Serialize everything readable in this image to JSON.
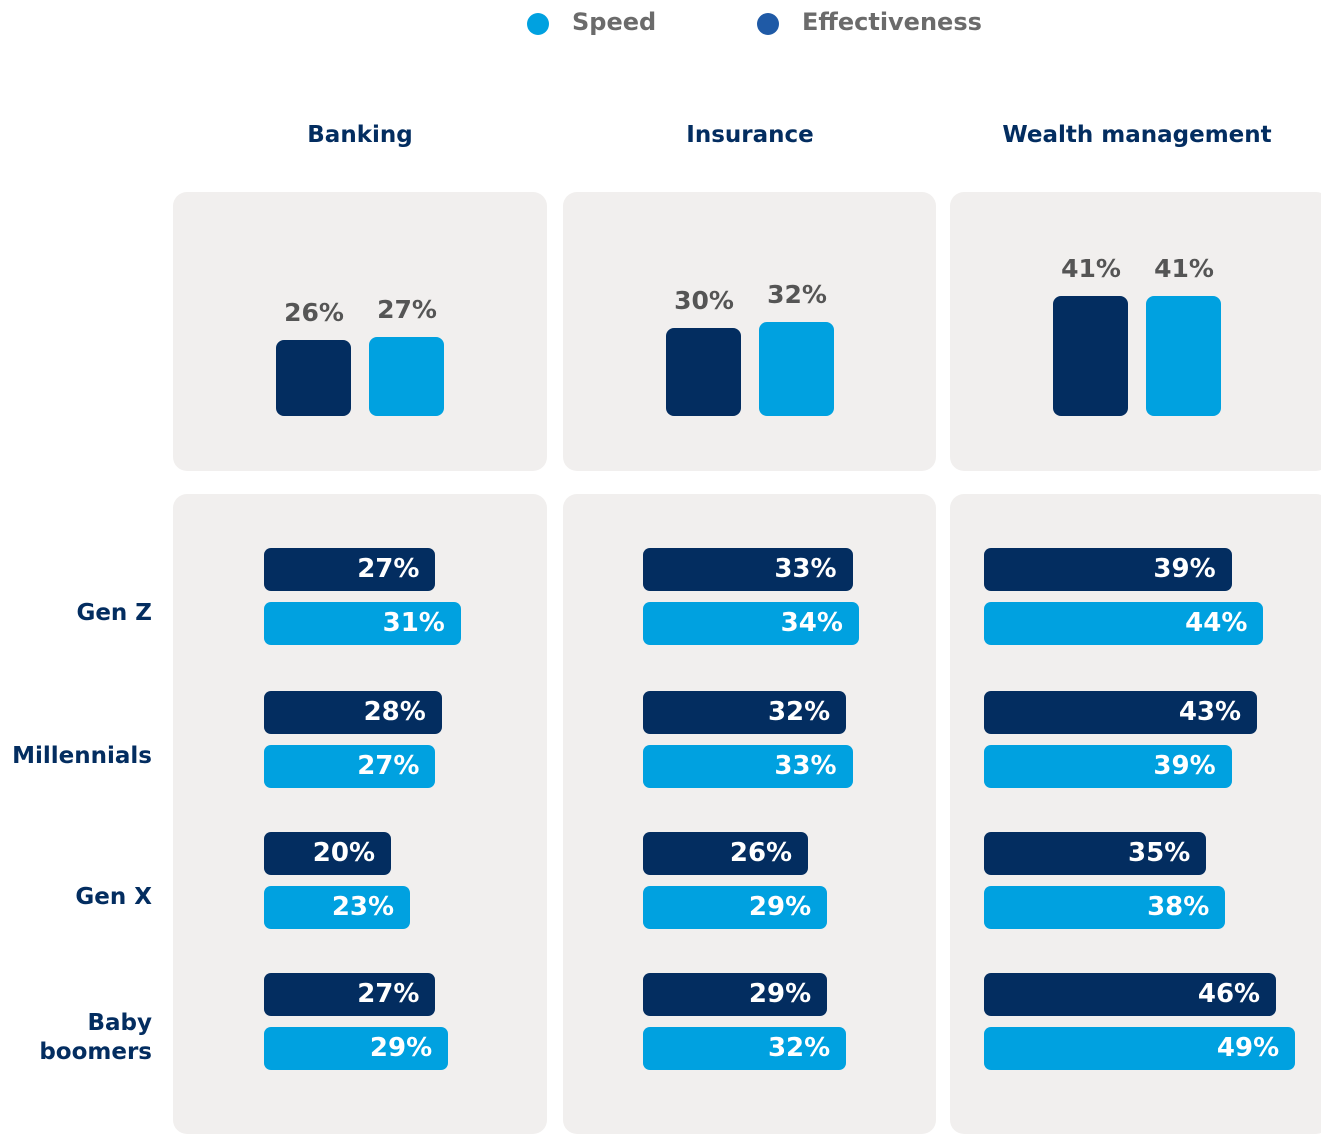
{
  "chart_data": {
    "type": "bar",
    "categories": [
      "Banking",
      "Insurance",
      "Wealth management"
    ],
    "groups": [
      "Gen Z",
      "Millennials",
      "Gen X",
      "Baby boomers"
    ],
    "series": [
      {
        "name": "Effectiveness",
        "color": "#1f5aa6",
        "bar_color": "#032d60",
        "values": [
          26,
          30,
          41
        ],
        "value_labels": [
          "26%",
          "30%",
          "41%"
        ],
        "group_values": [
          [
            27,
            28,
            20,
            27
          ],
          [
            33,
            32,
            26,
            29
          ],
          [
            39,
            43,
            35,
            46
          ]
        ],
        "group_value_labels": [
          [
            "27%",
            "28%",
            "20%",
            "27%"
          ],
          [
            "33%",
            "32%",
            "26%",
            "29%"
          ],
          [
            "39%",
            "43%",
            "35%",
            "46%"
          ]
        ]
      },
      {
        "name": "Speed",
        "color": "#00a1e0",
        "bar_color": "#00a1e0",
        "values": [
          27,
          32,
          41
        ],
        "value_labels": [
          "27%",
          "32%",
          "41%"
        ],
        "group_values": [
          [
            31,
            27,
            23,
            29
          ],
          [
            34,
            33,
            29,
            32
          ],
          [
            44,
            39,
            38,
            49
          ]
        ],
        "group_value_labels": [
          [
            "31%",
            "27%",
            "23%",
            "29%"
          ],
          [
            "34%",
            "33%",
            "29%",
            "32%"
          ],
          [
            "44%",
            "39%",
            "38%",
            "49%"
          ]
        ]
      }
    ]
  }
}
